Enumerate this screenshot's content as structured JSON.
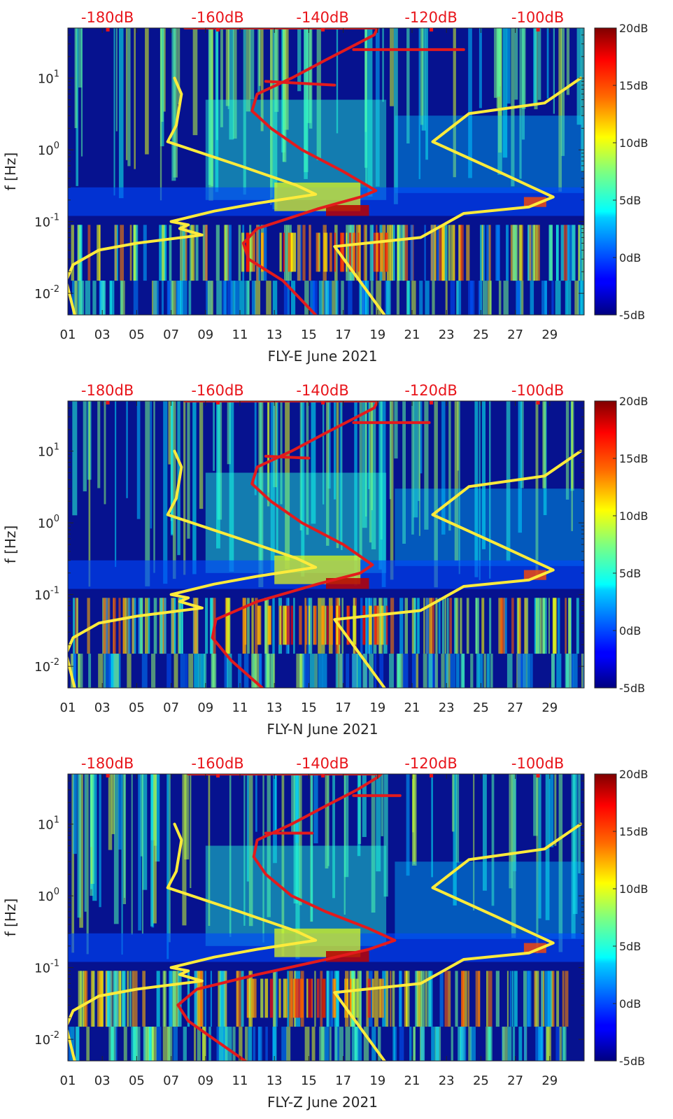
{
  "colors": {
    "ambient": "#ffeb3b",
    "model": "#e31a1c",
    "background": "#06128f",
    "top_label": "#e8141a"
  },
  "colorbar": {
    "ticks": [
      "20dB",
      "15dB",
      "10dB",
      "5dB",
      "0dB",
      "-5dB"
    ],
    "values": [
      20,
      15,
      10,
      5,
      0,
      -5
    ],
    "range": [
      -5,
      20
    ]
  },
  "chart_data": [
    {
      "type": "heatmap",
      "title": "",
      "xlabel": "FLY-E June 2021",
      "ylabel": "f [Hz]",
      "xtick_labels": [
        "01",
        "03",
        "05",
        "07",
        "09",
        "11",
        "13",
        "15",
        "17",
        "19",
        "21",
        "23",
        "25",
        "27",
        "29"
      ],
      "xlim_days": [
        1,
        31
      ],
      "ylim_hz": [
        0.005,
        50
      ],
      "y_scale": "log",
      "ytick_labels": [
        "10^1",
        "10^0",
        "10^-1",
        "10^-2"
      ],
      "top_labels": [
        "-180dB",
        "-160dB",
        "-140dB",
        "-120dB",
        "-100dB"
      ],
      "top_label_days": [
        3.3,
        9.7,
        15.8,
        22.1,
        28.3
      ],
      "series": [
        {
          "name": "ambient-noise-model",
          "color": "#ffeb3b",
          "points": [
            [
              7.2,
              10
            ],
            [
              7.6,
              6
            ],
            [
              7.3,
              2.2
            ],
            [
              6.8,
              1.3
            ],
            [
              11,
              0.6
            ],
            [
              14.3,
              0.32
            ],
            [
              15.4,
              0.24
            ],
            [
              12,
              0.18
            ],
            [
              9.5,
              0.14
            ],
            [
              7,
              0.1
            ],
            [
              8,
              0.09
            ],
            [
              7.5,
              0.08
            ],
            [
              8.8,
              0.065
            ],
            [
              5,
              0.05
            ],
            [
              2.8,
              0.04
            ],
            [
              1.3,
              0.025
            ],
            [
              0.9,
              0.015
            ],
            [
              1.4,
              0.005
            ]
          ]
        },
        {
          "name": "ambient-noise-model-right",
          "color": "#ffeb3b",
          "points": [
            [
              19.4,
              0.005
            ],
            [
              16.5,
              0.045
            ],
            [
              21.5,
              0.06
            ],
            [
              22,
              0.07
            ],
            [
              24,
              0.13
            ],
            [
              27.8,
              0.16
            ],
            [
              29.2,
              0.22
            ],
            [
              26,
              0.5
            ],
            [
              22.2,
              1.3
            ],
            [
              24.3,
              3.2
            ],
            [
              28.7,
              4.5
            ],
            [
              30.8,
              10
            ]
          ]
        },
        {
          "name": "psd-red-curve",
          "color": "#e31a1c",
          "points": [
            [
              15.4,
              0.005
            ],
            [
              13.5,
              0.015
            ],
            [
              11.5,
              0.03
            ],
            [
              11.2,
              0.05
            ],
            [
              12,
              0.08
            ],
            [
              15.5,
              0.15
            ],
            [
              18,
              0.22
            ],
            [
              18.9,
              0.27
            ],
            [
              17,
              0.5
            ],
            [
              14.6,
              1
            ],
            [
              12.8,
              2
            ],
            [
              11.7,
              3.5
            ],
            [
              12,
              6
            ],
            [
              14,
              10
            ],
            [
              16,
              18
            ],
            [
              17.8,
              30
            ],
            [
              18.8,
              40
            ],
            [
              19,
              50
            ]
          ]
        },
        {
          "name": "psd-red-branch",
          "color": "#e31a1c",
          "points": [
            [
              12.5,
              9
            ],
            [
              16.5,
              8
            ]
          ]
        },
        {
          "name": "psd-red-branch-2",
          "color": "#e31a1c",
          "points": [
            [
              17.6,
              25
            ],
            [
              24,
              25
            ]
          ]
        },
        {
          "name": "psd-red-top",
          "color": "#e31a1c",
          "points": [
            [
              7.8,
              50
            ],
            [
              19,
              50
            ]
          ]
        }
      ]
    },
    {
      "type": "heatmap",
      "title": "",
      "xlabel": "FLY-N June 2021",
      "ylabel": "f [Hz]",
      "xtick_labels": [
        "01",
        "03",
        "05",
        "07",
        "09",
        "11",
        "13",
        "15",
        "17",
        "19",
        "21",
        "23",
        "25",
        "27",
        "29"
      ],
      "xlim_days": [
        1,
        31
      ],
      "ylim_hz": [
        0.005,
        50
      ],
      "y_scale": "log",
      "ytick_labels": [
        "10^1",
        "10^0",
        "10^-1",
        "10^-2"
      ],
      "top_labels": [
        "-180dB",
        "-160dB",
        "-140dB",
        "-120dB",
        "-100dB"
      ],
      "top_label_days": [
        3.3,
        9.7,
        15.8,
        22.1,
        28.3
      ],
      "series": [
        {
          "name": "ambient-noise-model",
          "color": "#ffeb3b",
          "points": [
            [
              7.2,
              10
            ],
            [
              7.6,
              6
            ],
            [
              7.3,
              2.2
            ],
            [
              6.8,
              1.3
            ],
            [
              11,
              0.6
            ],
            [
              14.3,
              0.32
            ],
            [
              15.4,
              0.24
            ],
            [
              12,
              0.18
            ],
            [
              9.5,
              0.14
            ],
            [
              7,
              0.1
            ],
            [
              8,
              0.09
            ],
            [
              7.5,
              0.08
            ],
            [
              8.8,
              0.065
            ],
            [
              5,
              0.05
            ],
            [
              2.8,
              0.04
            ],
            [
              1.3,
              0.025
            ],
            [
              0.9,
              0.015
            ],
            [
              1.4,
              0.005
            ]
          ]
        },
        {
          "name": "ambient-noise-model-right",
          "color": "#ffeb3b",
          "points": [
            [
              19.4,
              0.005
            ],
            [
              16.5,
              0.045
            ],
            [
              21.5,
              0.06
            ],
            [
              22,
              0.07
            ],
            [
              24,
              0.13
            ],
            [
              27.8,
              0.16
            ],
            [
              29.2,
              0.22
            ],
            [
              26,
              0.5
            ],
            [
              22.2,
              1.3
            ],
            [
              24.3,
              3.2
            ],
            [
              28.7,
              4.5
            ],
            [
              30.8,
              10
            ]
          ]
        },
        {
          "name": "psd-red-curve",
          "color": "#e31a1c",
          "points": [
            [
              12.3,
              0.005
            ],
            [
              10.5,
              0.012
            ],
            [
              9.4,
              0.025
            ],
            [
              9.6,
              0.045
            ],
            [
              12,
              0.08
            ],
            [
              15.5,
              0.14
            ],
            [
              18,
              0.2
            ],
            [
              18.7,
              0.26
            ],
            [
              17,
              0.5
            ],
            [
              14.6,
              1
            ],
            [
              12.8,
              2
            ],
            [
              11.7,
              3.5
            ],
            [
              12,
              6
            ],
            [
              14,
              10
            ],
            [
              16,
              18
            ],
            [
              17.8,
              30
            ],
            [
              18.8,
              40
            ],
            [
              19,
              50
            ]
          ]
        },
        {
          "name": "psd-red-branch",
          "color": "#e31a1c",
          "points": [
            [
              12.5,
              8.5
            ],
            [
              15,
              8
            ]
          ]
        },
        {
          "name": "psd-red-branch-2",
          "color": "#e31a1c",
          "points": [
            [
              17.6,
              25
            ],
            [
              22,
              25
            ]
          ]
        },
        {
          "name": "psd-red-top",
          "color": "#e31a1c",
          "points": [
            [
              7.8,
              50
            ],
            [
              19,
              50
            ]
          ]
        }
      ]
    },
    {
      "type": "heatmap",
      "title": "",
      "xlabel": "FLY-Z June 2021",
      "ylabel": "f [Hz]",
      "xtick_labels": [
        "01",
        "03",
        "05",
        "07",
        "09",
        "11",
        "13",
        "15",
        "17",
        "19",
        "21",
        "23",
        "25",
        "27",
        "29"
      ],
      "xlim_days": [
        1,
        31
      ],
      "ylim_hz": [
        0.005,
        50
      ],
      "y_scale": "log",
      "ytick_labels": [
        "10^1",
        "10^0",
        "10^-1",
        "10^-2"
      ],
      "top_labels": [
        "-180dB",
        "-160dB",
        "-140dB",
        "-120dB",
        "-100dB"
      ],
      "top_label_days": [
        3.3,
        9.7,
        15.8,
        22.1,
        28.3
      ],
      "series": [
        {
          "name": "ambient-noise-model",
          "color": "#ffeb3b",
          "points": [
            [
              7.2,
              10
            ],
            [
              7.6,
              6
            ],
            [
              7.3,
              2.2
            ],
            [
              6.8,
              1.3
            ],
            [
              11,
              0.6
            ],
            [
              14.3,
              0.32
            ],
            [
              15.4,
              0.24
            ],
            [
              12,
              0.18
            ],
            [
              9.5,
              0.14
            ],
            [
              7,
              0.1
            ],
            [
              8,
              0.09
            ],
            [
              7.5,
              0.08
            ],
            [
              8.8,
              0.065
            ],
            [
              5,
              0.05
            ],
            [
              2.8,
              0.04
            ],
            [
              1.3,
              0.025
            ],
            [
              0.9,
              0.015
            ],
            [
              1.4,
              0.005
            ]
          ]
        },
        {
          "name": "ambient-noise-model-right",
          "color": "#ffeb3b",
          "points": [
            [
              19.4,
              0.005
            ],
            [
              16.5,
              0.045
            ],
            [
              21.5,
              0.06
            ],
            [
              22,
              0.07
            ],
            [
              24,
              0.13
            ],
            [
              27.8,
              0.16
            ],
            [
              29.2,
              0.22
            ],
            [
              26,
              0.5
            ],
            [
              22.2,
              1.3
            ],
            [
              24.3,
              3.2
            ],
            [
              28.7,
              4.5
            ],
            [
              30.8,
              10
            ]
          ]
        },
        {
          "name": "psd-red-curve",
          "color": "#e31a1c",
          "points": [
            [
              11.3,
              0.005
            ],
            [
              9.5,
              0.01
            ],
            [
              8,
              0.018
            ],
            [
              7.4,
              0.03
            ],
            [
              8.5,
              0.05
            ],
            [
              12,
              0.08
            ],
            [
              16,
              0.13
            ],
            [
              18.5,
              0.18
            ],
            [
              20,
              0.24
            ],
            [
              18.5,
              0.35
            ],
            [
              16,
              0.6
            ],
            [
              14,
              1
            ],
            [
              12.5,
              2
            ],
            [
              11.8,
              3.5
            ],
            [
              12,
              6
            ],
            [
              14,
              10
            ],
            [
              16,
              18
            ],
            [
              17.8,
              30
            ],
            [
              19,
              45
            ],
            [
              19.2,
              50
            ]
          ]
        },
        {
          "name": "psd-red-branch",
          "color": "#e31a1c",
          "points": [
            [
              12.5,
              7.5
            ],
            [
              15.2,
              7.5
            ]
          ]
        },
        {
          "name": "psd-red-branch-2",
          "color": "#e31a1c",
          "points": [
            [
              17.6,
              25
            ],
            [
              20.3,
              25
            ]
          ]
        },
        {
          "name": "psd-red-top",
          "color": "#e31a1c",
          "points": [
            [
              8,
              50
            ],
            [
              19.2,
              50
            ]
          ]
        }
      ]
    }
  ]
}
